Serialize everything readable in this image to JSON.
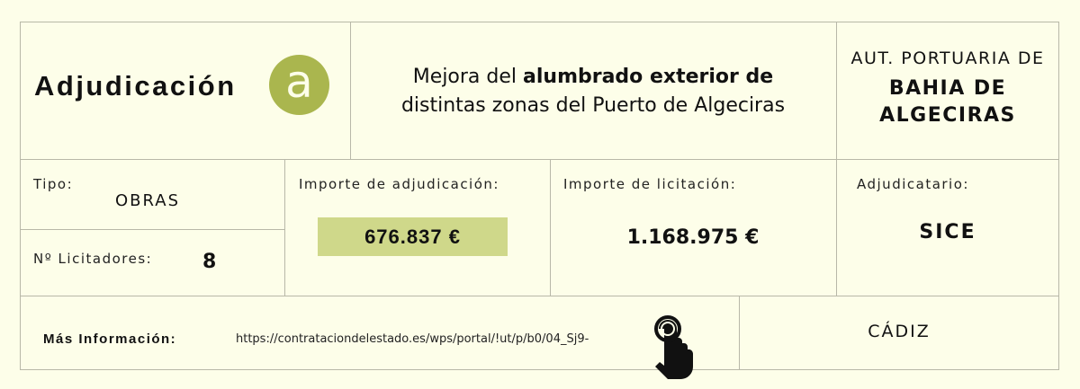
{
  "header": {
    "title": "Adjudicación",
    "logo_letter": "a",
    "description_pre": "Mejora del ",
    "description_bold": "alumbrado exterior de",
    "description_line2": "distintas zonas del Puerto de Algeciras",
    "org_line1": "AUT. PORTUARIA DE",
    "org_line2": "BAHIA DE",
    "org_line3": "ALGECIRAS"
  },
  "details": {
    "tipo_label": "Tipo:",
    "tipo_value": "OBRAS",
    "licitadores_label": "Nº Licitadores:",
    "licitadores_value": "8",
    "adjudicacion_label": "Importe de adjudicación:",
    "adjudicacion_value": "676.837 €",
    "licitacion_label": "Importe de licitación:",
    "licitacion_value": "1.168.975 €",
    "adjudicatario_label": "Adjudicatario:",
    "adjudicatario_value": "SICE"
  },
  "footer": {
    "info_label": "Más Información:",
    "link": "https://contratacion​delestado.es/wps/portal/!ut/p/b0/04_Sj9-",
    "location": "CÁDIZ"
  },
  "colors": {
    "accent": "#aab64e",
    "highlight": "#cfd88a",
    "background": "#fdfee9"
  },
  "icons": {
    "pointer": "hand-pointer-icon"
  }
}
